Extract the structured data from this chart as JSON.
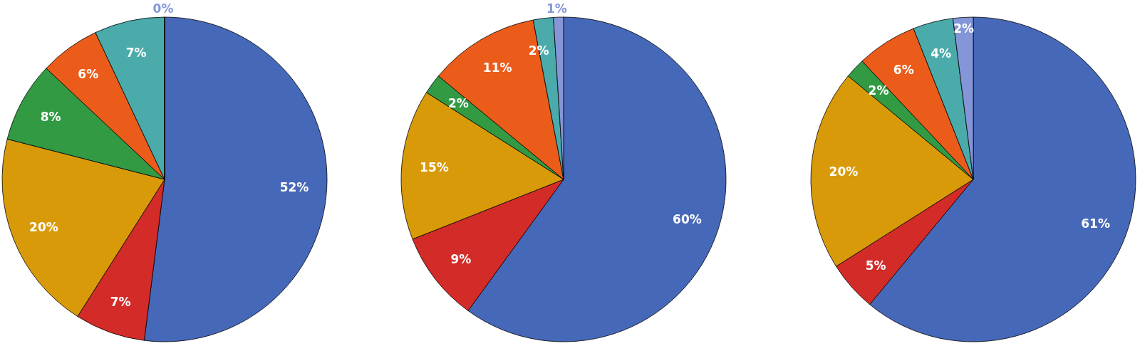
{
  "chart_data": [
    {
      "type": "pie",
      "categories": [
        null,
        null,
        null,
        null,
        null,
        null,
        null
      ],
      "values": [
        52,
        7,
        20,
        8,
        6,
        7,
        0
      ],
      "colors": [
        "#4668b8",
        "#d32b28",
        "#d89a08",
        "#319a42",
        "#eb5c1a",
        "#4aabaa",
        "#8496d8"
      ],
      "value_labels": [
        "52%",
        "7%",
        "20%",
        "8%",
        "6%",
        "7%",
        "0%"
      ]
    },
    {
      "type": "pie",
      "categories": [
        null,
        null,
        null,
        null,
        null,
        null,
        null
      ],
      "values": [
        60,
        9,
        15,
        2,
        11,
        2,
        1
      ],
      "colors": [
        "#4668b8",
        "#d32b28",
        "#d89a08",
        "#319a42",
        "#eb5c1a",
        "#4aabaa",
        "#8496d8"
      ],
      "value_labels": [
        "60%",
        "9%",
        "15%",
        "2%",
        "11%",
        "2%",
        "1%"
      ]
    },
    {
      "type": "pie",
      "categories": [
        null,
        null,
        null,
        null,
        null,
        null,
        null
      ],
      "values": [
        61,
        5,
        20,
        2,
        6,
        4,
        2
      ],
      "colors": [
        "#4668b8",
        "#d32b28",
        "#d89a08",
        "#319a42",
        "#eb5c1a",
        "#4aabaa",
        "#8496d8"
      ],
      "value_labels": [
        "61%",
        "5%",
        "20%",
        "2%",
        "6%",
        "4%",
        "2%"
      ]
    }
  ]
}
